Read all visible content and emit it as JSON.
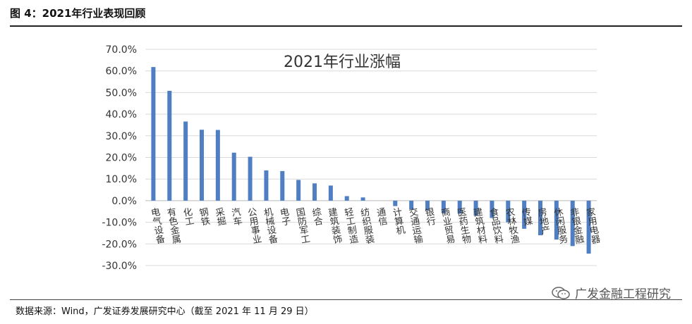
{
  "figure": {
    "title": "图 4：2021年行业表现回顾",
    "source": "数据来源：Wind，广发证券发展研究中心（截至 2021 年 11 月 29 日）",
    "watermark": "广发金融工程研究"
  },
  "chart_data": {
    "type": "bar",
    "title": "2021年行业涨幅",
    "xlabel": "",
    "ylabel": "",
    "ylim": [
      -0.3,
      0.7
    ],
    "ytick_step": 0.1,
    "ytick_format": "percent-1dp",
    "grid": true,
    "legend": "none",
    "bar_color": "#4F7FC2",
    "categories": [
      "电气设备",
      "有色金属",
      "化工",
      "钢铁",
      "采掘",
      "汽车",
      "公用事业",
      "机械设备",
      "电子",
      "国防军工",
      "综合",
      "建筑装饰",
      "轻工制造",
      "纺织服装",
      "通信",
      "计算机",
      "交通运输",
      "银行",
      "商业贸易",
      "医药生物",
      "建筑材料",
      "食品饮料",
      "农林牧渔",
      "传媒",
      "房地产",
      "休闲服务",
      "非银金融",
      "家用电器"
    ],
    "values": [
      0.618,
      0.508,
      0.366,
      0.328,
      0.327,
      0.222,
      0.203,
      0.14,
      0.137,
      0.096,
      0.08,
      0.07,
      0.021,
      0.015,
      0.0,
      -0.025,
      -0.04,
      -0.045,
      -0.058,
      -0.06,
      -0.07,
      -0.08,
      -0.1,
      -0.13,
      -0.16,
      -0.18,
      -0.21,
      -0.245
    ]
  }
}
